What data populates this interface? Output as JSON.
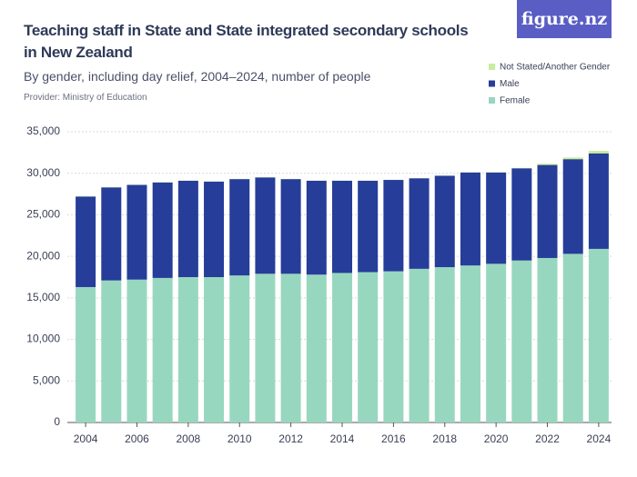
{
  "chart_data": {
    "type": "stacked_bar",
    "title": "Teaching staff in State and State integrated secondary schools in New Zealand",
    "subtitle": "By gender, including day relief, 2004–2024, number of people",
    "provider": "Provider: Ministry of Education",
    "logo": "figure.nz",
    "categories": [
      "2004",
      null,
      "2006",
      null,
      "2008",
      null,
      "2010",
      null,
      "2012",
      null,
      "2014",
      null,
      "2016",
      null,
      "2018",
      null,
      "2020",
      null,
      "2022",
      null,
      "2024"
    ],
    "series": [
      {
        "name": "Female",
        "color": "#98d7bf",
        "values": [
          16300,
          17100,
          17200,
          17400,
          17500,
          17500,
          17700,
          17900,
          17900,
          17800,
          18000,
          18100,
          18200,
          18500,
          18700,
          18900,
          19100,
          19500,
          19800,
          20300,
          20900
        ]
      },
      {
        "name": "Male",
        "color": "#263d99",
        "values": [
          10900,
          11200,
          11400,
          11500,
          11600,
          11500,
          11600,
          11600,
          11400,
          11300,
          11100,
          11000,
          11000,
          10900,
          11000,
          11200,
          11000,
          11100,
          11200,
          11400,
          11500
        ]
      },
      {
        "name": "Not Stated/Another Gender",
        "color": "#c6ee9b",
        "values": [
          20,
          20,
          20,
          20,
          20,
          20,
          20,
          20,
          20,
          20,
          20,
          20,
          20,
          20,
          20,
          20,
          20,
          50,
          150,
          200,
          300
        ]
      }
    ],
    "ylim": [
      0,
      35000
    ],
    "yticks": [
      0,
      {
        "value": 5000,
        "label": "5,000"
      },
      {
        "value": 10000,
        "label": "10,000"
      },
      {
        "value": 15000,
        "label": "15,000"
      },
      {
        "value": 20000,
        "label": "20,000"
      },
      {
        "value": 25000,
        "label": "25,000"
      },
      {
        "value": 30000,
        "label": "30,000"
      },
      {
        "value": 35000,
        "label": "35,000"
      }
    ],
    "grid": true
  }
}
